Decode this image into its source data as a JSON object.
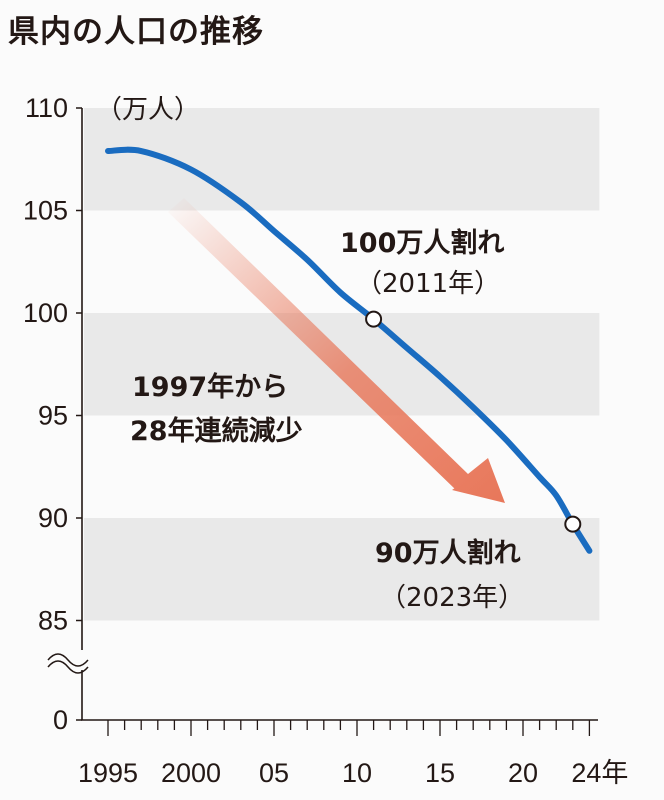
{
  "chart_data": {
    "type": "line",
    "title": "県内の人口の推移",
    "unit_label": "（万人）",
    "xlabel": "",
    "ylabel": "万人",
    "ylim": [
      85,
      110
    ],
    "y_axis_break": true,
    "y_ticks": [
      110,
      105,
      100,
      95,
      90,
      85,
      0
    ],
    "x_range": [
      1995,
      2024
    ],
    "x_tick_labels": [
      {
        "year": 1995,
        "label": "1995"
      },
      {
        "year": 2000,
        "label": "2000"
      },
      {
        "year": 2005,
        "label": "05"
      },
      {
        "year": 2010,
        "label": "10"
      },
      {
        "year": 2015,
        "label": "15"
      },
      {
        "year": 2020,
        "label": "20"
      },
      {
        "year": 2024,
        "label": "24年"
      }
    ],
    "series": [
      {
        "name": "人口",
        "color": "#1a6cc0",
        "x": [
          1995,
          1997,
          2000,
          2003,
          2005,
          2007,
          2009,
          2011,
          2013,
          2015,
          2017,
          2019,
          2021,
          2022,
          2023,
          2024
        ],
        "values": [
          107.9,
          107.9,
          107.0,
          105.4,
          104.0,
          102.6,
          101.0,
          99.7,
          98.3,
          96.9,
          95.4,
          93.8,
          92.0,
          91.1,
          89.7,
          88.4
        ]
      }
    ],
    "highlights": [
      {
        "year": 2011,
        "value": 99.7,
        "label": "100万人割れ",
        "sub": "（2011年）"
      },
      {
        "year": 2023,
        "value": 89.7,
        "label": "90万人割れ",
        "sub": "（2023年）"
      }
    ],
    "trend_annotation": {
      "line1": "1997年から",
      "line2": "28年連続減少",
      "color": "#e8775a"
    },
    "band_color": "#e9e9e9",
    "grid": false
  }
}
